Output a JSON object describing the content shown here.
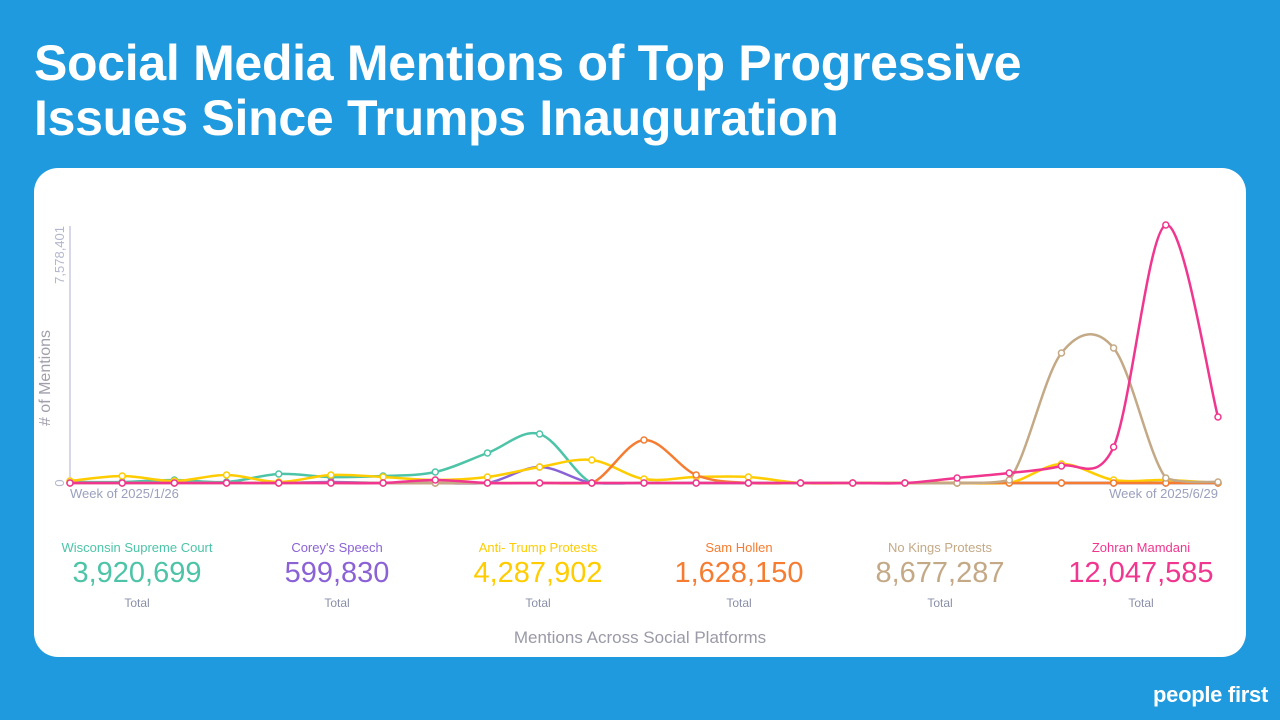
{
  "title_line1": "Social Media Mentions of Top Progressive",
  "title_line2": "Issues Since Trumps Inauguration",
  "logo": "people first",
  "chart_data": {
    "type": "line",
    "title": "Mentions Across Social Platforms",
    "ylabel": "# of Mentions",
    "xlabel": "",
    "x_start_label": "Week of 2025/1/26",
    "x_end_label": "Week of 2025/6/29",
    "y_ticks": [
      "0",
      "7,578,401"
    ],
    "ylim": [
      0,
      7578401
    ],
    "n_points": 23,
    "series": [
      {
        "name": "Wisconsin Supreme Court",
        "total": "3,920,699",
        "color": "#4dc4a8",
        "values": [
          30000,
          30000,
          89000,
          30000,
          266000,
          178000,
          207000,
          325000,
          888000,
          1450000,
          0,
          0,
          0,
          0,
          0,
          0,
          0,
          0,
          0,
          0,
          0,
          0,
          0
        ]
      },
      {
        "name": "Corey's Speech",
        "total": "599,830",
        "color": "#8b62d6",
        "values": [
          0,
          0,
          0,
          0,
          0,
          30000,
          0,
          0,
          0,
          474000,
          0,
          0,
          0,
          0,
          0,
          0,
          0,
          0,
          0,
          0,
          0,
          0,
          0
        ]
      },
      {
        "name": "Anti- Trump Protests",
        "total": "4,287,902",
        "color": "#ffcc00",
        "values": [
          59000,
          207000,
          59000,
          237000,
          30000,
          237000,
          178000,
          89000,
          178000,
          474000,
          681000,
          118000,
          178000,
          178000,
          0,
          0,
          0,
          0,
          0,
          563000,
          89000,
          89000,
          0
        ]
      },
      {
        "name": "Sam Hollen",
        "total": "1,628,150",
        "color": "#f57c30",
        "values": [
          0,
          0,
          0,
          0,
          0,
          0,
          0,
          0,
          0,
          0,
          0,
          1273000,
          237000,
          0,
          0,
          0,
          0,
          0,
          0,
          0,
          0,
          0,
          0
        ]
      },
      {
        "name": "No Kings Protests",
        "total": "8,677,287",
        "color": "#c4a986",
        "values": [
          0,
          0,
          0,
          0,
          0,
          0,
          0,
          0,
          0,
          0,
          0,
          0,
          0,
          0,
          0,
          0,
          0,
          0,
          89000,
          3848000,
          3996000,
          148000,
          30000
        ]
      },
      {
        "name": "Zohran Mamdani",
        "total": "12,047,585",
        "color": "#f0368f",
        "values": [
          0,
          0,
          0,
          0,
          0,
          0,
          0,
          89000,
          0,
          0,
          0,
          0,
          0,
          0,
          0,
          0,
          0,
          148000,
          296000,
          503000,
          1066000,
          7637000,
          1954000
        ]
      }
    ],
    "total_label": "Total",
    "grid": false,
    "legend_placement": "bottom"
  }
}
